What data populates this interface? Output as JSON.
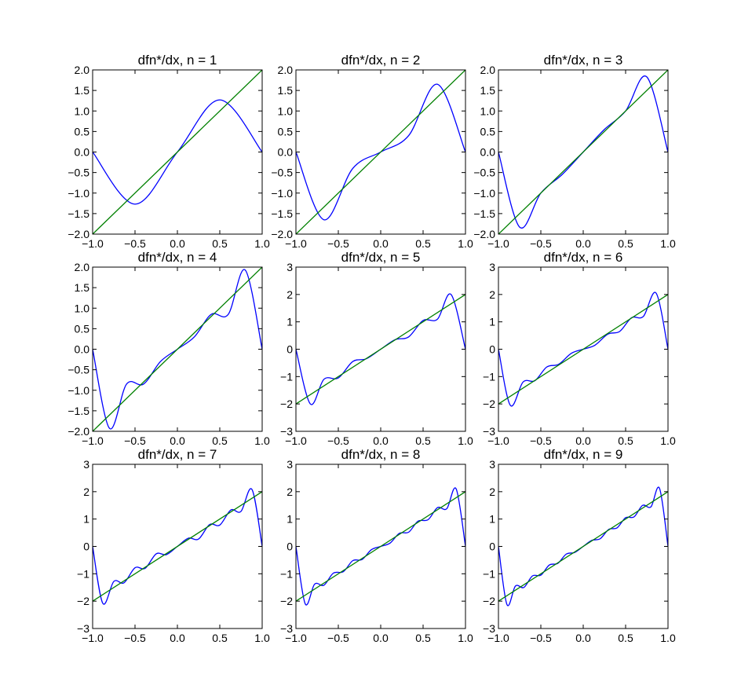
{
  "colors": {
    "approx": "#0000ff",
    "exact": "#008000",
    "axes": "#000000",
    "background": "#ffffff"
  },
  "chart_data": [
    {
      "type": "line",
      "title": "dfn*/dx, n = 1",
      "n": 1,
      "xlim": [
        -1.0,
        1.0
      ],
      "ylim": [
        -2.0,
        2.0
      ],
      "xticks": [
        -1.0,
        -0.5,
        0.0,
        0.5,
        1.0
      ],
      "xtick_labels": [
        "−1.0",
        "−0.5",
        "0.0",
        "0.5",
        "1.0"
      ],
      "yticks": [
        -2.0,
        -1.5,
        -1.0,
        -0.5,
        0.0,
        0.5,
        1.0,
        1.5,
        2.0
      ],
      "ytick_labels": [
        "−2.0",
        "−1.5",
        "−1.0",
        "−0.5",
        "0.0",
        "0.5",
        "1.0",
        "1.5",
        "2.0"
      ],
      "series": [
        {
          "color": "#0000ff",
          "x": [
            -1.0,
            -0.5,
            0.0,
            0.5,
            1.0
          ],
          "y": [
            0.0,
            -1.27,
            0.0,
            1.27,
            0.0
          ]
        },
        {
          "color": "#008000",
          "x": [
            -1.0,
            1.0
          ],
          "y": [
            -2.0,
            2.0
          ]
        }
      ]
    },
    {
      "type": "line",
      "title": "dfn*/dx, n = 2",
      "n": 2,
      "xlim": [
        -1.0,
        1.0
      ],
      "ylim": [
        -2.0,
        2.0
      ],
      "xticks": [
        -1.0,
        -0.5,
        0.0,
        0.5,
        1.0
      ],
      "xtick_labels": [
        "−1.0",
        "−0.5",
        "0.0",
        "0.5",
        "1.0"
      ],
      "yticks": [
        -2.0,
        -1.5,
        -1.0,
        -0.5,
        0.0,
        0.5,
        1.0,
        1.5,
        2.0
      ],
      "ytick_labels": [
        "−2.0",
        "−1.5",
        "−1.0",
        "−0.5",
        "0.0",
        "0.5",
        "1.0",
        "1.5",
        "2.0"
      ],
      "series": [
        {
          "color": "#0000ff",
          "x": [
            -1.0,
            -0.67,
            -0.33,
            0.0,
            0.33,
            0.67,
            1.0
          ],
          "y": [
            0.0,
            -1.65,
            -0.4,
            0.0,
            0.4,
            1.65,
            0.0
          ]
        },
        {
          "color": "#008000",
          "x": [
            -1.0,
            1.0
          ],
          "y": [
            -2.0,
            2.0
          ]
        }
      ]
    },
    {
      "type": "line",
      "title": "dfn*/dx, n = 3",
      "n": 3,
      "xlim": [
        -1.0,
        1.0
      ],
      "ylim": [
        -2.0,
        2.0
      ],
      "xticks": [
        -1.0,
        -0.5,
        0.0,
        0.5,
        1.0
      ],
      "xtick_labels": [
        "−1.0",
        "−0.5",
        "0.0",
        "0.5",
        "1.0"
      ],
      "yticks": [
        -2.0,
        -1.5,
        -1.0,
        -0.5,
        0.0,
        0.5,
        1.0,
        1.5,
        2.0
      ],
      "ytick_labels": [
        "−2.0",
        "−1.5",
        "−1.0",
        "−0.5",
        "0.0",
        "0.5",
        "1.0",
        "1.5",
        "2.0"
      ],
      "series": [
        {
          "color": "#0000ff",
          "x": [
            -1.0,
            -0.75,
            -0.5,
            -0.25,
            0.0,
            0.25,
            0.5,
            0.75,
            1.0
          ],
          "y": [
            0.0,
            -1.83,
            -1.0,
            -0.55,
            0.0,
            0.55,
            1.0,
            1.83,
            0.0
          ]
        },
        {
          "color": "#008000",
          "x": [
            -1.0,
            1.0
          ],
          "y": [
            -2.0,
            2.0
          ]
        }
      ]
    },
    {
      "type": "line",
      "title": "dfn*/dx, n = 4",
      "n": 4,
      "xlim": [
        -1.0,
        1.0
      ],
      "ylim": [
        -2.0,
        2.0
      ],
      "xticks": [
        -1.0,
        -0.5,
        0.0,
        0.5,
        1.0
      ],
      "xtick_labels": [
        "−1.0",
        "−0.5",
        "0.0",
        "0.5",
        "1.0"
      ],
      "yticks": [
        -2.0,
        -1.5,
        -1.0,
        -0.5,
        0.0,
        0.5,
        1.0,
        1.5,
        2.0
      ],
      "ytick_labels": [
        "−2.0",
        "−1.5",
        "−1.0",
        "−0.5",
        "0.0",
        "0.5",
        "1.0",
        "1.5",
        "2.0"
      ],
      "series": [
        {
          "color": "#0000ff",
          "x": [
            -1.0,
            -0.8,
            -0.6,
            -0.4,
            -0.2,
            0.0,
            0.2,
            0.4,
            0.6,
            0.8,
            1.0
          ],
          "y": [
            0.0,
            -1.93,
            -0.85,
            -0.85,
            -0.3,
            0.0,
            0.3,
            0.85,
            0.85,
            1.93,
            0.0
          ]
        },
        {
          "color": "#008000",
          "x": [
            -1.0,
            1.0
          ],
          "y": [
            -2.0,
            2.0
          ]
        }
      ]
    },
    {
      "type": "line",
      "title": "dfn*/dx, n = 5",
      "n": 5,
      "xlim": [
        -1.0,
        1.0
      ],
      "ylim": [
        -3,
        3
      ],
      "xticks": [
        -1.0,
        -0.5,
        0.0,
        0.5,
        1.0
      ],
      "xtick_labels": [
        "−1.0",
        "−0.5",
        "0.0",
        "0.5",
        "1.0"
      ],
      "yticks": [
        -3,
        -2,
        -1,
        0,
        1,
        2,
        3
      ],
      "ytick_labels": [
        "−3",
        "−2",
        "−1",
        "0",
        "1",
        "2",
        "3"
      ],
      "series": [
        {
          "color": "#0000ff",
          "x": [
            -1.0,
            -0.83,
            -0.67,
            -0.5,
            -0.33,
            -0.17,
            0.0,
            0.17,
            0.33,
            0.5,
            0.67,
            0.83,
            1.0
          ],
          "y": [
            0.0,
            -2.0,
            -1.1,
            -1.05,
            -0.45,
            -0.35,
            0.0,
            0.35,
            0.45,
            1.05,
            1.1,
            2.0,
            0.0
          ]
        },
        {
          "color": "#008000",
          "x": [
            -1.0,
            1.0
          ],
          "y": [
            -2.0,
            2.0
          ]
        }
      ]
    },
    {
      "type": "line",
      "title": "dfn*/dx, n = 6",
      "n": 6,
      "xlim": [
        -1.0,
        1.0
      ],
      "ylim": [
        -3,
        3
      ],
      "xticks": [
        -1.0,
        -0.5,
        0.0,
        0.5,
        1.0
      ],
      "xtick_labels": [
        "−1.0",
        "−0.5",
        "0.0",
        "0.5",
        "1.0"
      ],
      "yticks": [
        -3,
        -2,
        -1,
        0,
        1,
        2,
        3
      ],
      "ytick_labels": [
        "−3",
        "−2",
        "−1",
        "0",
        "1",
        "2",
        "3"
      ],
      "series": [
        {
          "color": "#0000ff",
          "x": [
            -1.0,
            -0.86,
            -0.71,
            -0.57,
            -0.43,
            -0.29,
            -0.14,
            0.0,
            0.14,
            0.29,
            0.43,
            0.57,
            0.71,
            0.86,
            1.0
          ],
          "y": [
            0.0,
            -2.05,
            -1.2,
            -1.15,
            -0.65,
            -0.55,
            -0.15,
            0.0,
            0.15,
            0.55,
            0.65,
            1.15,
            1.2,
            2.05,
            0.0
          ]
        },
        {
          "color": "#008000",
          "x": [
            -1.0,
            1.0
          ],
          "y": [
            -2.0,
            2.0
          ]
        }
      ]
    },
    {
      "type": "line",
      "title": "dfn*/dx, n = 7",
      "n": 7,
      "xlim": [
        -1.0,
        1.0
      ],
      "ylim": [
        -3,
        3
      ],
      "xticks": [
        -1.0,
        -0.5,
        0.0,
        0.5,
        1.0
      ],
      "xtick_labels": [
        "−1.0",
        "−0.5",
        "0.0",
        "0.5",
        "1.0"
      ],
      "yticks": [
        -3,
        -2,
        -1,
        0,
        1,
        2,
        3
      ],
      "ytick_labels": [
        "−3",
        "−2",
        "−1",
        "0",
        "1",
        "2",
        "3"
      ],
      "series": [
        {
          "color": "#0000ff",
          "x": [
            -1.0,
            -0.88,
            -0.75,
            -0.63,
            -0.5,
            -0.38,
            -0.25,
            -0.13,
            0.0,
            0.13,
            0.25,
            0.38,
            0.5,
            0.63,
            0.75,
            0.88,
            1.0
          ],
          "y": [
            0.0,
            -2.08,
            -1.28,
            -1.33,
            -0.78,
            -0.8,
            -0.27,
            -0.3,
            0.0,
            0.3,
            0.27,
            0.8,
            0.78,
            1.33,
            1.28,
            2.08,
            0.0
          ]
        },
        {
          "color": "#008000",
          "x": [
            -1.0,
            1.0
          ],
          "y": [
            -2.0,
            2.0
          ]
        }
      ]
    },
    {
      "type": "line",
      "title": "dfn*/dx, n = 8",
      "n": 8,
      "xlim": [
        -1.0,
        1.0
      ],
      "ylim": [
        -3,
        3
      ],
      "xticks": [
        -1.0,
        -0.5,
        0.0,
        0.5,
        1.0
      ],
      "xtick_labels": [
        "−1.0",
        "−0.5",
        "0.0",
        "0.5",
        "1.0"
      ],
      "yticks": [
        -3,
        -2,
        -1,
        0,
        1,
        2,
        3
      ],
      "ytick_labels": [
        "−3",
        "−2",
        "−1",
        "0",
        "1",
        "2",
        "3"
      ],
      "series": [
        {
          "color": "#0000ff",
          "x": [
            -1.0,
            -0.89,
            -0.78,
            -0.67,
            -0.56,
            -0.44,
            -0.33,
            -0.22,
            -0.11,
            0.0,
            0.11,
            0.22,
            0.33,
            0.44,
            0.56,
            0.67,
            0.78,
            0.89,
            1.0
          ],
          "y": [
            0.0,
            -2.1,
            -1.38,
            -1.42,
            -0.98,
            -0.92,
            -0.52,
            -0.48,
            -0.12,
            0.0,
            0.12,
            0.48,
            0.52,
            0.92,
            0.98,
            1.42,
            1.38,
            2.1,
            0.0
          ]
        },
        {
          "color": "#008000",
          "x": [
            -1.0,
            1.0
          ],
          "y": [
            -2.0,
            2.0
          ]
        }
      ]
    },
    {
      "type": "line",
      "title": "dfn*/dx, n = 9",
      "n": 9,
      "xlim": [
        -1.0,
        1.0
      ],
      "ylim": [
        -3,
        3
      ],
      "xticks": [
        -1.0,
        -0.5,
        0.0,
        0.5,
        1.0
      ],
      "xtick_labels": [
        "−1.0",
        "−0.5",
        "0.0",
        "0.5",
        "1.0"
      ],
      "yticks": [
        -3,
        -2,
        -1,
        0,
        1,
        2,
        3
      ],
      "ytick_labels": [
        "−3",
        "−2",
        "−1",
        "0",
        "1",
        "2",
        "3"
      ],
      "series": [
        {
          "color": "#0000ff",
          "x": [
            -1.0,
            -0.9,
            -0.8,
            -0.7,
            -0.6,
            -0.5,
            -0.4,
            -0.3,
            -0.2,
            -0.1,
            0.0,
            0.1,
            0.2,
            0.3,
            0.4,
            0.5,
            0.6,
            0.7,
            0.8,
            0.9,
            1.0
          ],
          "y": [
            0.0,
            -2.12,
            -1.45,
            -1.5,
            -1.08,
            -1.05,
            -0.68,
            -0.62,
            -0.28,
            -0.22,
            0.0,
            0.22,
            0.28,
            0.62,
            0.68,
            1.05,
            1.08,
            1.5,
            1.45,
            2.12,
            0.0
          ]
        },
        {
          "color": "#008000",
          "x": [
            -1.0,
            1.0
          ],
          "y": [
            -2.0,
            2.0
          ]
        }
      ]
    }
  ]
}
